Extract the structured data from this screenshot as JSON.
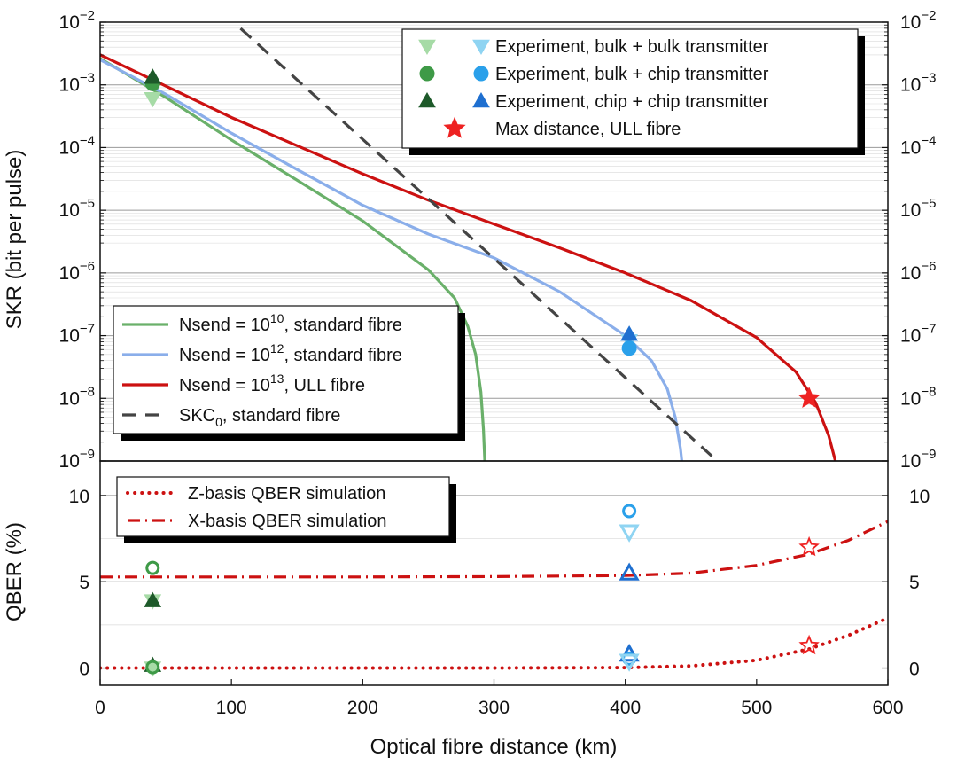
{
  "xaxis": {
    "label": "Optical fibre distance (km)",
    "ticks": [
      0,
      100,
      200,
      300,
      400,
      500,
      600
    ],
    "range": [
      0,
      600
    ]
  },
  "colors": {
    "green": "#6ab06a",
    "green_light": "#a6dba6",
    "green_mid": "#3e9a47",
    "green_dark": "#1e5a2a",
    "blue": "#8aaeea",
    "blue_light": "#8fd4f2",
    "blue_mid": "#2aa0ea",
    "blue_dark": "#1e6fd0",
    "red": "#cc1111",
    "red_bright": "#ee2222",
    "dash": "#444444"
  },
  "chart_data": [
    {
      "type": "line",
      "panel": "top",
      "ylabel": "SKR (bit per pulse)",
      "yscale": "log",
      "ylim_exp": [
        -9,
        -2
      ],
      "ytick_exponents": [
        -9,
        -8,
        -7,
        -6,
        -5,
        -4,
        -3,
        -2
      ],
      "grid": true,
      "series": [
        {
          "name": "Nsend = 10^10, standard fibre",
          "label": {
            "pre": "Nsend = 10",
            "sup": "10",
            "post": ", standard fibre"
          },
          "color": "green",
          "style": "solid",
          "x": [
            0,
            50,
            100,
            150,
            200,
            250,
            270,
            280,
            286,
            290,
            292,
            293
          ],
          "log10_y": [
            -2.58,
            -3.2,
            -3.88,
            -4.52,
            -5.17,
            -5.95,
            -6.4,
            -6.85,
            -7.3,
            -7.9,
            -8.5,
            -9.0
          ]
        },
        {
          "name": "Nsend = 10^12, standard fibre",
          "label": {
            "pre": "Nsend = 10",
            "sup": "12",
            "post": ", standard fibre"
          },
          "color": "blue",
          "style": "solid",
          "x": [
            0,
            50,
            100,
            150,
            200,
            250,
            300,
            350,
            400,
            420,
            432,
            438,
            442,
            443
          ],
          "log10_y": [
            -2.6,
            -3.15,
            -3.77,
            -4.35,
            -4.92,
            -5.38,
            -5.76,
            -6.3,
            -7.0,
            -7.4,
            -7.85,
            -8.3,
            -8.8,
            -9.0
          ]
        },
        {
          "name": "Nsend = 10^13, ULL fibre",
          "label": {
            "pre": "Nsend = 10",
            "sup": "13",
            "post": ", ULL fibre"
          },
          "color": "red",
          "style": "solid",
          "x": [
            0,
            50,
            100,
            150,
            200,
            250,
            300,
            350,
            400,
            450,
            500,
            530,
            545,
            555,
            560
          ],
          "log10_y": [
            -2.52,
            -3.02,
            -3.52,
            -3.97,
            -4.42,
            -4.84,
            -5.22,
            -5.6,
            -6.0,
            -6.44,
            -7.03,
            -7.58,
            -8.07,
            -8.6,
            -9.0
          ]
        },
        {
          "name": "SKC0, standard fibre",
          "label": {
            "pre": "SKC",
            "sub": "0",
            "post": ", standard fibre"
          },
          "color": "dash",
          "style": "dashed",
          "x": [
            107,
            470
          ],
          "log10_y": [
            -2.1,
            -9.0
          ]
        }
      ],
      "points": [
        {
          "series": "Experiment, bulk + bulk transmitter",
          "marker": "tri_down",
          "color": "green_light",
          "x": 40,
          "log10_y": -3.22
        },
        {
          "series": "Experiment, bulk + chip transmitter",
          "marker": "circle",
          "color": "green_mid",
          "x": 40,
          "log10_y": -2.98
        },
        {
          "series": "Experiment, chip + chip transmitter",
          "marker": "tri_up",
          "color": "green_dark",
          "x": 40,
          "log10_y": -2.88
        },
        {
          "series": "Experiment, bulk + bulk transmitter",
          "marker": "tri_down",
          "color": "blue_light",
          "x": 403,
          "log10_y": -7.08
        },
        {
          "series": "Experiment, bulk + chip transmitter",
          "marker": "circle",
          "color": "blue_mid",
          "x": 403,
          "log10_y": -7.2
        },
        {
          "series": "Experiment, chip + chip transmitter",
          "marker": "tri_up",
          "color": "blue_dark",
          "x": 403,
          "log10_y": -6.98
        },
        {
          "series": "Max distance, ULL fibre",
          "marker": "star",
          "color": "red_bright",
          "x": 540,
          "log10_y": -8.0
        }
      ],
      "legend_lines": {
        "placement": "lower-left"
      },
      "legend_markers": {
        "placement": "top-right",
        "entries": [
          {
            "label": "Experiment, bulk + bulk transmitter",
            "markers": [
              {
                "shape": "tri_down",
                "color": "green_light"
              },
              {
                "shape": "tri_down",
                "color": "blue_light"
              }
            ]
          },
          {
            "label": "Experiment, bulk + chip transmitter",
            "markers": [
              {
                "shape": "circle",
                "color": "green_mid"
              },
              {
                "shape": "circle",
                "color": "blue_mid"
              }
            ]
          },
          {
            "label": "Experiment, chip + chip transmitter",
            "markers": [
              {
                "shape": "tri_up",
                "color": "green_dark"
              },
              {
                "shape": "tri_up",
                "color": "blue_dark"
              }
            ]
          },
          {
            "label": "Max distance, ULL fibre",
            "markers": [
              {
                "shape": "star",
                "color": "red_bright"
              }
            ]
          }
        ]
      }
    },
    {
      "type": "line",
      "panel": "bottom",
      "ylabel": "QBER (%)",
      "ylim": [
        -1,
        12
      ],
      "yticks": [
        0,
        5,
        10
      ],
      "grid": true,
      "series": [
        {
          "name": "Z-basis QBER simulation",
          "color": "red",
          "style": "dotted",
          "x": [
            0,
            100,
            200,
            300,
            400,
            450,
            500,
            540,
            570,
            600
          ],
          "y": [
            0.0,
            0.0,
            0.0,
            0.0,
            0.02,
            0.12,
            0.45,
            1.1,
            1.9,
            2.9
          ]
        },
        {
          "name": "X-basis QBER simulation",
          "color": "red",
          "style": "dashdot",
          "x": [
            0,
            100,
            200,
            300,
            400,
            450,
            500,
            540,
            570,
            600
          ],
          "y": [
            5.28,
            5.28,
            5.28,
            5.3,
            5.36,
            5.5,
            5.95,
            6.6,
            7.4,
            8.5
          ]
        }
      ],
      "points": [
        {
          "marker": "circle_open",
          "color": "green_mid",
          "x": 40,
          "y": 5.8
        },
        {
          "marker": "tri_down",
          "color": "green_light",
          "x": 40,
          "y": 3.9
        },
        {
          "marker": "tri_up",
          "color": "green_dark",
          "x": 40,
          "y": 3.9
        },
        {
          "marker": "tri_up",
          "color": "green_dark",
          "x": 40,
          "y": 0.15
        },
        {
          "marker": "tri_down",
          "color": "green_light",
          "x": 40,
          "y": 0.0
        },
        {
          "marker": "circle_open",
          "color": "green_mid",
          "x": 40,
          "y": 0.05
        },
        {
          "marker": "circle_open",
          "color": "blue_mid",
          "x": 403,
          "y": 9.1
        },
        {
          "marker": "tri_down_open",
          "color": "blue_light",
          "x": 403,
          "y": 7.9
        },
        {
          "marker": "tri_up_open",
          "color": "blue_dark",
          "x": 403,
          "y": 5.5
        },
        {
          "marker": "tri_up_open",
          "color": "blue_dark",
          "x": 403,
          "y": 0.8
        },
        {
          "marker": "circle_open",
          "color": "blue_mid",
          "x": 403,
          "y": 0.55
        },
        {
          "marker": "tri_down_open",
          "color": "blue_light",
          "x": 403,
          "y": 0.4
        },
        {
          "marker": "star_open",
          "color": "red_bright",
          "x": 540,
          "y": 7.0
        },
        {
          "marker": "star_open",
          "color": "red_bright",
          "x": 540,
          "y": 1.3
        }
      ],
      "legend": {
        "placement": "top-left"
      }
    }
  ]
}
